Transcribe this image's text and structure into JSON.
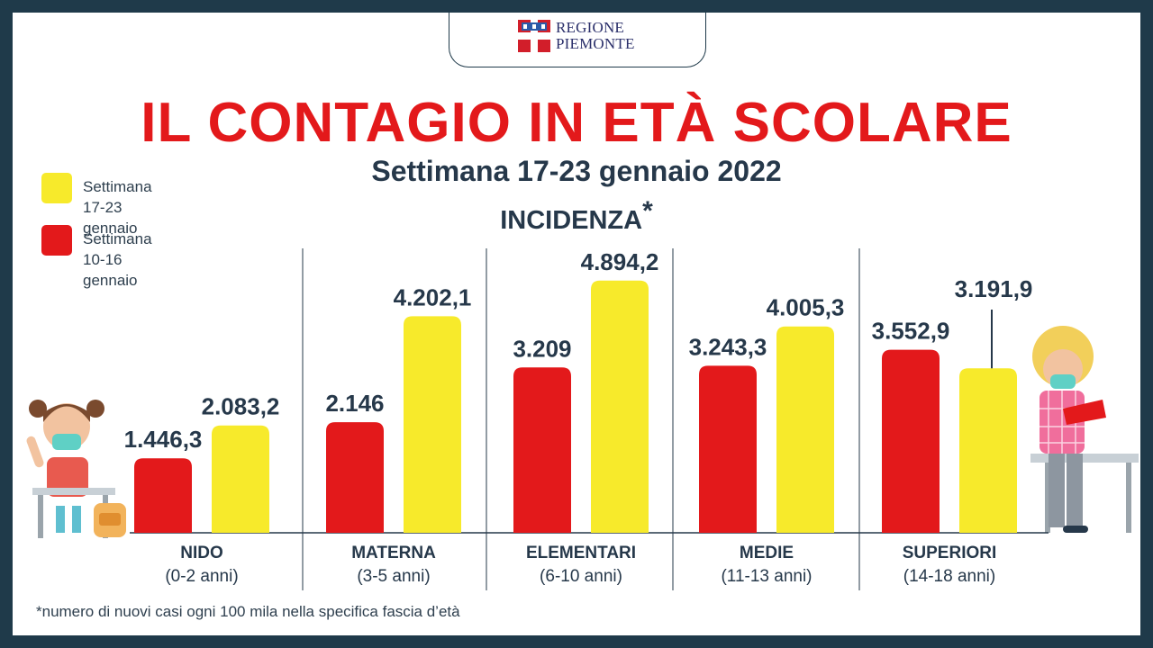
{
  "logo": {
    "line1": "REGIONE",
    "line2": "PIEMONTE"
  },
  "header": {
    "title": "IL CONTAGIO IN ETÀ SCOLARE",
    "subtitle": "Settimana 17-23 gennaio 2022",
    "metric": "INCIDENZA",
    "metric_mark": "*"
  },
  "legend": [
    {
      "label": "Settimana\n17-23 gennaio",
      "color": "#f7ea2b"
    },
    {
      "label": "Settimana\n10-16 gennaio",
      "color": "#e3191b"
    }
  ],
  "footnote": "*numero di nuovi casi ogni 100 mila nella specifica fascia d’età",
  "chart_data": {
    "type": "bar",
    "categories": [
      "NIDO",
      "MATERNA",
      "ELEMENTARI",
      "MEDIE",
      "SUPERIORI"
    ],
    "category_ranges": [
      "(0-2 anni)",
      "(3-5 anni)",
      "(6-10 anni)",
      "(11-13 anni)",
      "(14-18 anni)"
    ],
    "series": [
      {
        "name": "Settimana 10-16 gennaio",
        "color": "#e3191b",
        "values": [
          1446.3,
          2146,
          3209,
          3243.3,
          3552.9
        ],
        "labels": [
          "1.446,3",
          "2.146",
          "3.209",
          "3.243,3",
          "3.552,9"
        ]
      },
      {
        "name": "Settimana 17-23 gennaio",
        "color": "#f7ea2b",
        "values": [
          2083.2,
          4202.1,
          4894.2,
          4005.3,
          3191.9
        ],
        "labels": [
          "2.083,2",
          "4.202,1",
          "4.894,2",
          "4.005,3",
          "3.191,9"
        ]
      }
    ],
    "ylim": [
      0,
      5000
    ],
    "grid": false,
    "legend_position": "top-left"
  }
}
